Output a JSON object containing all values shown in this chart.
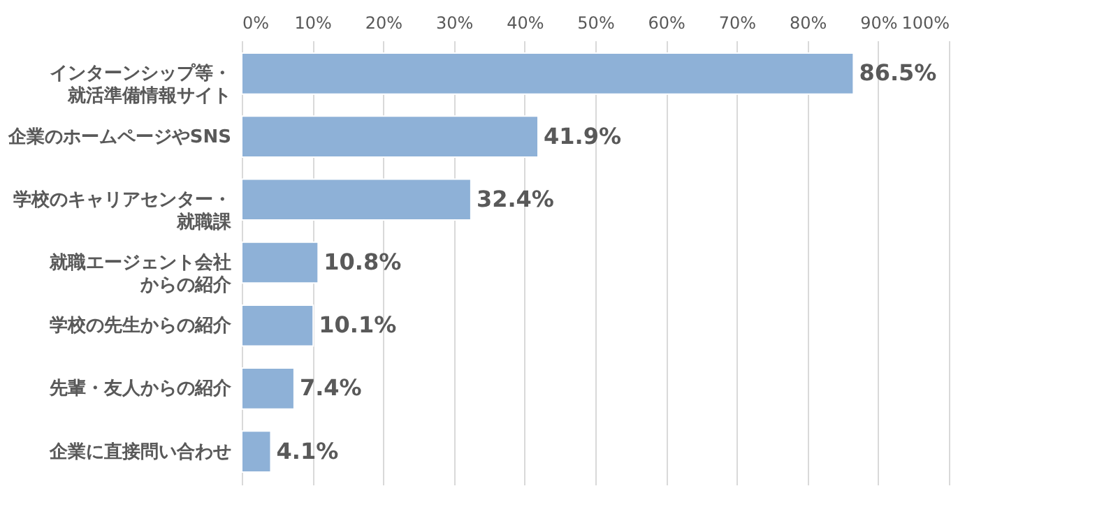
{
  "chart_data": {
    "type": "bar",
    "orientation": "horizontal",
    "categories": [
      "インターンシップ等・就活準備情報サイト",
      "企業のホームページやSNS",
      "学校のキャリアセンター・就職課",
      "就職エージェント会社からの紹介",
      "学校の先生からの紹介",
      "先輩・友人からの紹介",
      "企業に直接問い合わせ"
    ],
    "values": [
      86.5,
      41.9,
      32.4,
      10.8,
      10.1,
      7.4,
      4.1
    ],
    "value_labels": [
      "86.5%",
      "41.9%",
      "32.4%",
      "10.8%",
      "10.1%",
      "7.4%",
      "4.1%"
    ],
    "color": "#8eb1d7",
    "xlim": [
      0,
      100
    ],
    "xticks": [
      {
        "value": 0,
        "label": "0%"
      },
      {
        "value": 10,
        "label": "10%"
      },
      {
        "value": 20,
        "label": "20%"
      },
      {
        "value": 30,
        "label": "30%"
      },
      {
        "value": 40,
        "label": "40%"
      },
      {
        "value": 50,
        "label": "50%"
      },
      {
        "value": 60,
        "label": "60%"
      },
      {
        "value": 70,
        "label": "70%"
      },
      {
        "value": 80,
        "label": "80%"
      },
      {
        "value": 90,
        "label": "90%"
      },
      {
        "value": 100,
        "label": "100%"
      }
    ],
    "grid": "x"
  }
}
